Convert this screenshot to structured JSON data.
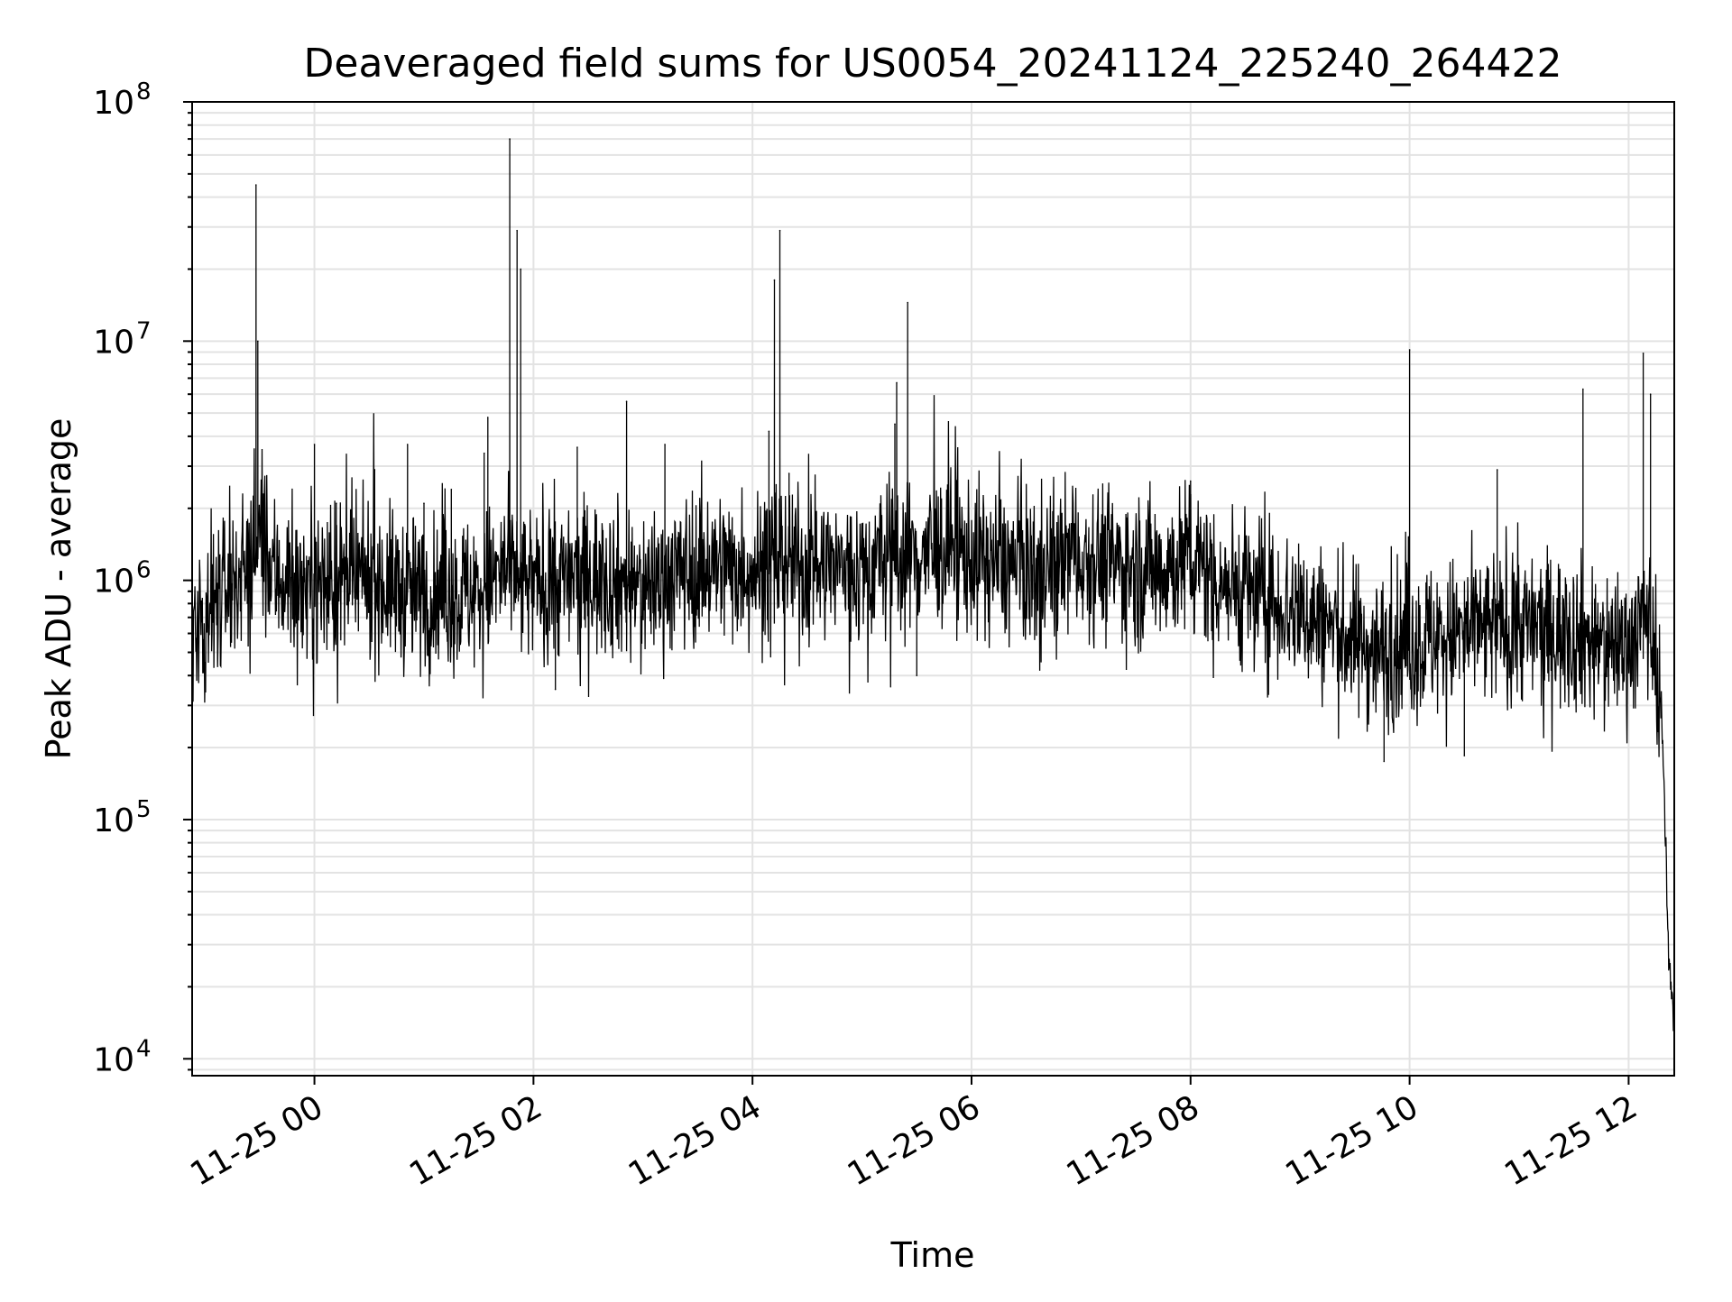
{
  "chart_data": {
    "type": "line",
    "title": "Deaveraged field sums for US0054_20241124_225240_264422",
    "xlabel": "Time",
    "ylabel": "Peak ADU - average",
    "y_scale": "log",
    "ylim": [
      8500,
      100000000
    ],
    "xlim": [
      "2024-11-24 22:53",
      "2024-11-25 12:25"
    ],
    "grid": true,
    "legend": "none",
    "line_color": "#000000",
    "grid_color": "#e3e3e3",
    "x_ticks": [
      {
        "t": "2024-11-25 00:00",
        "label": "11-25 00"
      },
      {
        "t": "2024-11-25 02:00",
        "label": "11-25 02"
      },
      {
        "t": "2024-11-25 04:00",
        "label": "11-25 04"
      },
      {
        "t": "2024-11-25 06:00",
        "label": "11-25 06"
      },
      {
        "t": "2024-11-25 08:00",
        "label": "11-25 08"
      },
      {
        "t": "2024-11-25 10:00",
        "label": "11-25 10"
      },
      {
        "t": "2024-11-25 12:00",
        "label": "11-25 12"
      }
    ],
    "y_ticks": [
      {
        "value": 10000,
        "base": "10",
        "exp": "4"
      },
      {
        "value": 100000,
        "base": "10",
        "exp": "5"
      },
      {
        "value": 1000000,
        "base": "10",
        "exp": "6"
      },
      {
        "value": 10000000,
        "base": "10",
        "exp": "7"
      },
      {
        "value": 100000000,
        "base": "10",
        "exp": "8"
      }
    ],
    "series": [
      {
        "x": [
          "2024-11-24 22:53",
          "2024-11-24 23:10",
          "2024-11-24 23:25",
          "2024-11-24 23:30",
          "2024-11-24 23:35",
          "2024-11-24 23:50",
          "2024-11-25 00:00",
          "2024-11-25 00:30",
          "2024-11-25 01:00",
          "2024-11-25 01:30",
          "2024-11-25 01:45",
          "2024-11-25 01:50",
          "2024-11-25 01:52",
          "2024-11-25 02:00",
          "2024-11-25 02:30",
          "2024-11-25 03:00",
          "2024-11-25 03:30",
          "2024-11-25 04:00",
          "2024-11-25 04:10",
          "2024-11-25 04:14",
          "2024-11-25 04:30",
          "2024-11-25 05:00",
          "2024-11-25 05:20",
          "2024-11-25 05:25",
          "2024-11-25 05:45",
          "2024-11-25 06:00",
          "2024-11-25 06:30",
          "2024-11-25 07:00",
          "2024-11-25 07:30",
          "2024-11-25 08:00",
          "2024-11-25 08:30",
          "2024-11-25 09:00",
          "2024-11-25 09:30",
          "2024-11-25 09:45",
          "2024-11-25 10:00",
          "2024-11-25 10:30",
          "2024-11-25 11:00",
          "2024-11-25 11:30",
          "2024-11-25 11:45",
          "2024-11-25 12:00",
          "2024-11-25 12:10",
          "2024-11-25 12:15",
          "2024-11-25 12:18",
          "2024-11-25 12:20",
          "2024-11-25 12:22",
          "2024-11-25 12:24",
          "2024-11-25 12:25"
        ],
        "y": [
          650000,
          900000,
          1200000,
          1500000,
          1100000,
          950000,
          950000,
          1000000,
          850000,
          900000,
          1100000,
          1000000,
          950000,
          950000,
          1050000,
          950000,
          1150000,
          1150000,
          1050000,
          1250000,
          1150000,
          1100000,
          1300000,
          1250000,
          1350000,
          1250000,
          1100000,
          1300000,
          1100000,
          1200000,
          900000,
          750000,
          550000,
          500000,
          550000,
          600000,
          650000,
          600000,
          550000,
          550000,
          700000,
          500000,
          300000,
          90000,
          25000,
          18000,
          13000
        ]
      }
    ],
    "spikes": [
      {
        "x": "2024-11-24 23:28",
        "y": 45000000
      },
      {
        "x": "2024-11-24 23:29",
        "y": 10000000
      },
      {
        "x": "2024-11-25 00:00",
        "y": 3700000
      },
      {
        "x": "2024-11-25 00:12",
        "y": 2100000
      },
      {
        "x": "2024-11-25 00:33",
        "y": 2900000
      },
      {
        "x": "2024-11-25 00:51",
        "y": 3700000
      },
      {
        "x": "2024-11-25 01:00",
        "y": 2100000
      },
      {
        "x": "2024-11-25 01:15",
        "y": 2400000
      },
      {
        "x": "2024-11-25 01:33",
        "y": 3400000
      },
      {
        "x": "2024-11-25 01:35",
        "y": 4800000
      },
      {
        "x": "2024-11-25 01:47",
        "y": 70000000
      },
      {
        "x": "2024-11-25 01:51",
        "y": 29000000
      },
      {
        "x": "2024-11-25 01:53",
        "y": 20000000
      },
      {
        "x": "2024-11-25 02:24",
        "y": 3600000
      },
      {
        "x": "2024-11-25 02:51",
        "y": 5600000
      },
      {
        "x": "2024-11-25 03:12",
        "y": 3700000
      },
      {
        "x": "2024-11-25 04:09",
        "y": 4200000
      },
      {
        "x": "2024-11-25 04:12",
        "y": 18000000
      },
      {
        "x": "2024-11-25 04:15",
        "y": 29000000
      },
      {
        "x": "2024-11-25 04:20",
        "y": 2800000
      },
      {
        "x": "2024-11-25 05:18",
        "y": 4500000
      },
      {
        "x": "2024-11-25 05:19",
        "y": 6700000
      },
      {
        "x": "2024-11-25 05:25",
        "y": 14500000
      },
      {
        "x": "2024-11-25 08:00",
        "y": 2600000
      },
      {
        "x": "2024-11-25 10:00",
        "y": 9200000
      },
      {
        "x": "2024-11-25 10:48",
        "y": 2900000
      },
      {
        "x": "2024-11-25 11:35",
        "y": 6300000
      },
      {
        "x": "2024-11-25 12:08",
        "y": 8900000
      },
      {
        "x": "2024-11-25 12:12",
        "y": 6000000
      }
    ],
    "dips": [
      {
        "x": "2024-11-25 02:12",
        "y": 350000
      },
      {
        "x": "2024-11-25 05:30",
        "y": 400000
      },
      {
        "x": "2024-11-25 09:46",
        "y": 175000
      },
      {
        "x": "2024-11-25 10:30",
        "y": 185000
      }
    ]
  }
}
